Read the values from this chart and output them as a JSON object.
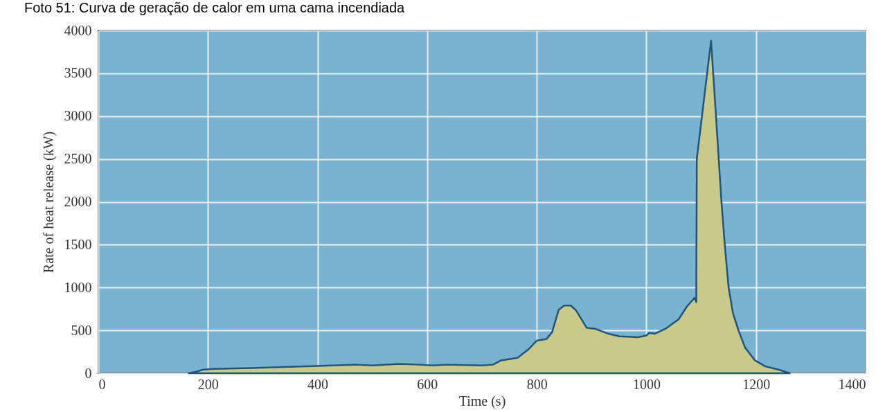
{
  "chart_data": {
    "type": "area",
    "title": "Foto 51: Curva de geração de calor em uma cama incendiada",
    "xlabel": "Time (s)",
    "ylabel": "Rate of heat release (kW)",
    "x": [
      165,
      180,
      190,
      210,
      280,
      380,
      470,
      500,
      550,
      585,
      610,
      635,
      700,
      720,
      735,
      765,
      785,
      800,
      818,
      828,
      840,
      850,
      862,
      872,
      891,
      906,
      931,
      951,
      985,
      1000,
      1005,
      1015,
      1035,
      1059,
      1074,
      1088,
      1091,
      1092,
      1118,
      1127,
      1137,
      1143,
      1150,
      1158,
      1168,
      1180,
      1198,
      1217,
      1242,
      1262
    ],
    "values": [
      0,
      20,
      40,
      50,
      60,
      80,
      100,
      90,
      110,
      100,
      90,
      100,
      90,
      100,
      150,
      180,
      280,
      380,
      400,
      480,
      740,
      790,
      790,
      730,
      530,
      520,
      460,
      430,
      420,
      440,
      470,
      460,
      520,
      630,
      780,
      880,
      830,
      2500,
      3880,
      3000,
      2000,
      1500,
      1000,
      700,
      500,
      300,
      150,
      80,
      40,
      0
    ],
    "color": "#c9c98a",
    "xlim": [
      0,
      1400
    ],
    "xticks": [
      0,
      200,
      400,
      600,
      800,
      1000,
      1200,
      1400
    ],
    "ylim": [
      0,
      4000
    ],
    "yticks": [
      0,
      500,
      1000,
      1500,
      2000,
      2500,
      3000,
      3500,
      4000
    ],
    "grid": true
  }
}
